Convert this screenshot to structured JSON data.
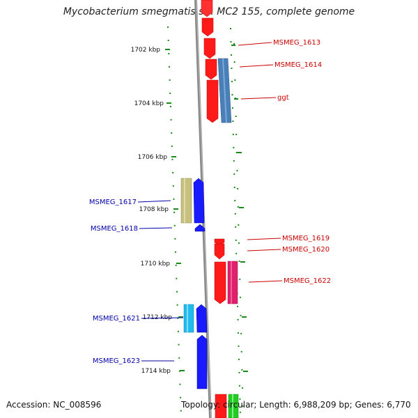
{
  "title": "Mycobacterium smegmatis str. MC2 155, complete genome",
  "footer": {
    "accession": "Accession: NC_008596",
    "summary": "Topology: circular; Length: 6,988,209 bp; Genes: 6,770"
  },
  "ticks": [
    "1702 kbp",
    "1704 kbp",
    "1706 kbp",
    "1708 kbp",
    "1710 kbp",
    "1712 kbp",
    "1714 kbp"
  ],
  "gene_labels_right": [
    "MSMEG_1613",
    "MSMEG_1614",
    "ggt",
    "MSMEG_1619",
    "MSMEG_1620",
    "MSMEG_1622"
  ],
  "gene_labels_left": [
    "MSMEG_1617",
    "MSMEG_1618",
    "MSMEG_1621",
    "MSMEG_1623"
  ],
  "colors": {
    "forward_gene": "#ff1a1a",
    "reverse_gene": "#1a1aff",
    "label_right": "#cc0000",
    "label_left": "#0000aa",
    "tick": "#1a8a1a",
    "backbone": "#888888"
  }
}
